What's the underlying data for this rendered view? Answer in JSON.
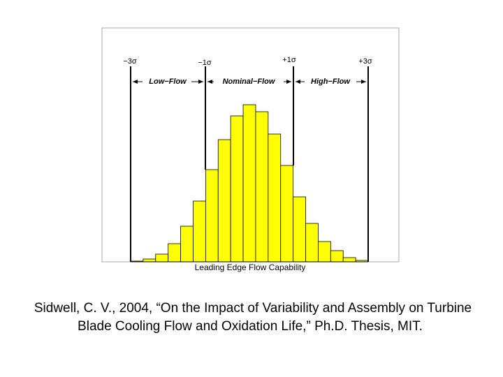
{
  "chart_data": {
    "type": "bar",
    "annotations": [
      "−3σ",
      "−1σ",
      "+1σ",
      "+3σ"
    ],
    "regions": [
      "Low−Flow",
      "Nominal−Flow",
      "High−Flow"
    ],
    "xlabel": "Leading Edge Flow Capability",
    "categories": [
      null,
      null,
      null,
      null,
      null,
      null,
      null,
      null,
      null,
      null,
      null,
      null,
      null,
      null,
      null,
      null,
      null,
      null,
      null
    ],
    "values": [
      1,
      4,
      11,
      26,
      51,
      87,
      132,
      175,
      209,
      225,
      215,
      183,
      138,
      93,
      55,
      29,
      16,
      6,
      2
    ],
    "color": "#ffff00"
  },
  "caption": [
    "Sidwell, C. V., 2004, “On the Impact of Variability and Assembly on Turbine",
    "Blade Cooling Flow and Oxidation Life,” Ph.D. Thesis, MIT."
  ]
}
